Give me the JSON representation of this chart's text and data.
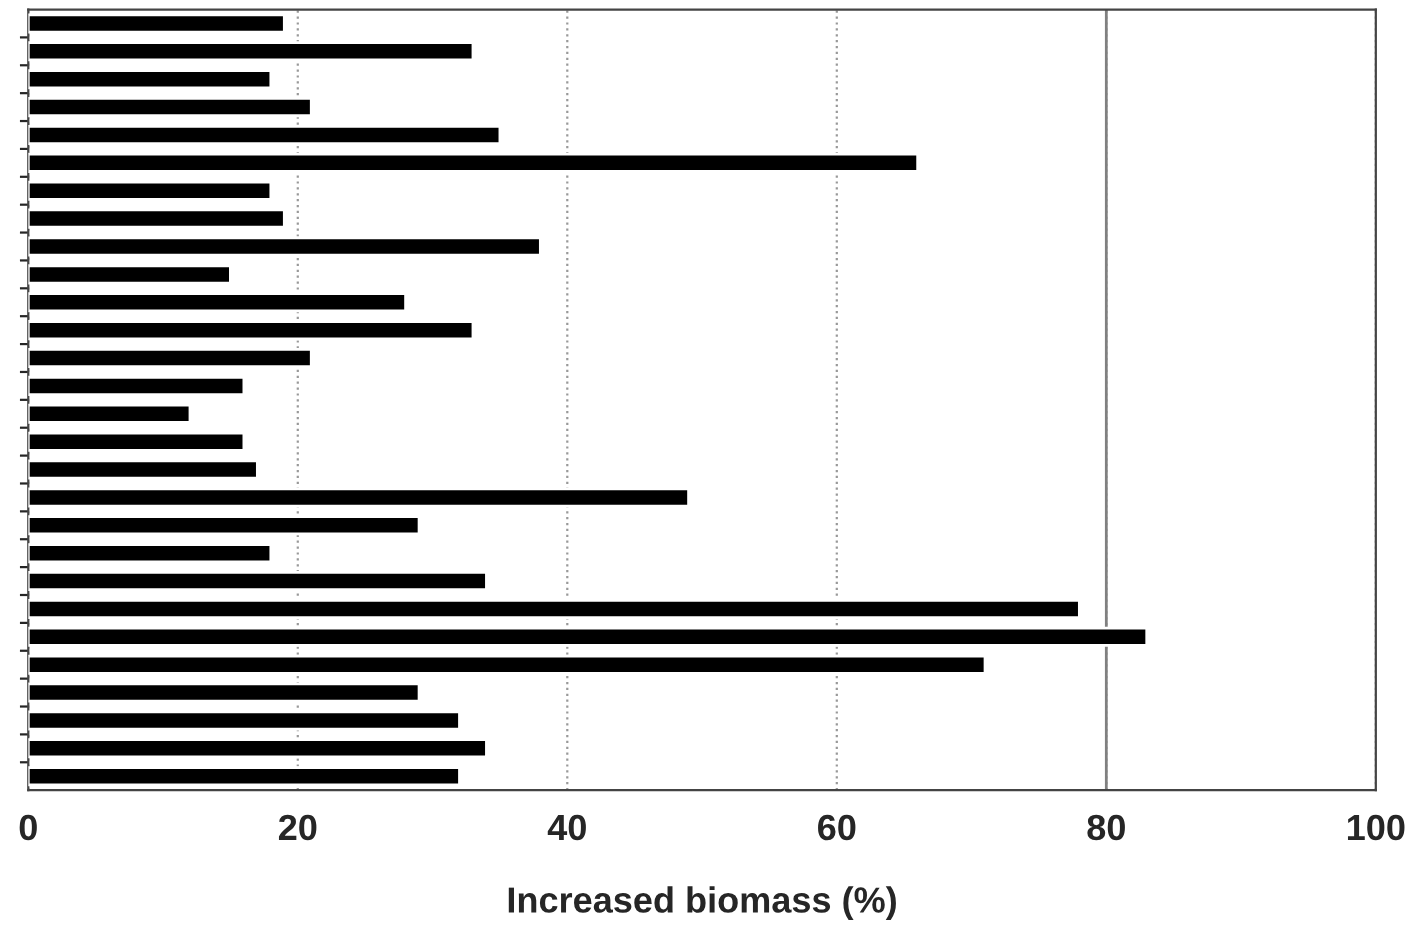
{
  "chart_data": {
    "type": "bar",
    "orientation": "horizontal",
    "xlabel": "Increased biomass (%)",
    "categories": [
      null,
      null,
      null,
      null,
      null,
      null,
      null,
      null,
      null,
      null,
      null,
      null,
      null,
      null,
      null,
      null,
      null,
      null,
      null,
      null,
      null,
      null,
      null,
      null,
      null,
      null,
      null,
      null
    ],
    "values": [
      19,
      33,
      18,
      21,
      35,
      66,
      18,
      19,
      38,
      15,
      28,
      33,
      21,
      16,
      12,
      16,
      17,
      49,
      29,
      18,
      34,
      78,
      83,
      71,
      29,
      32,
      34,
      32
    ],
    "color": "#000000",
    "xlim": [
      0,
      100
    ],
    "xticks": [
      0,
      20,
      40,
      60,
      80,
      100
    ],
    "grid": "x",
    "tick_labels": "x",
    "ref_lines": [
      {
        "axis": "x",
        "value": 80,
        "color": "#808080",
        "line_style": "solid"
      }
    ]
  }
}
